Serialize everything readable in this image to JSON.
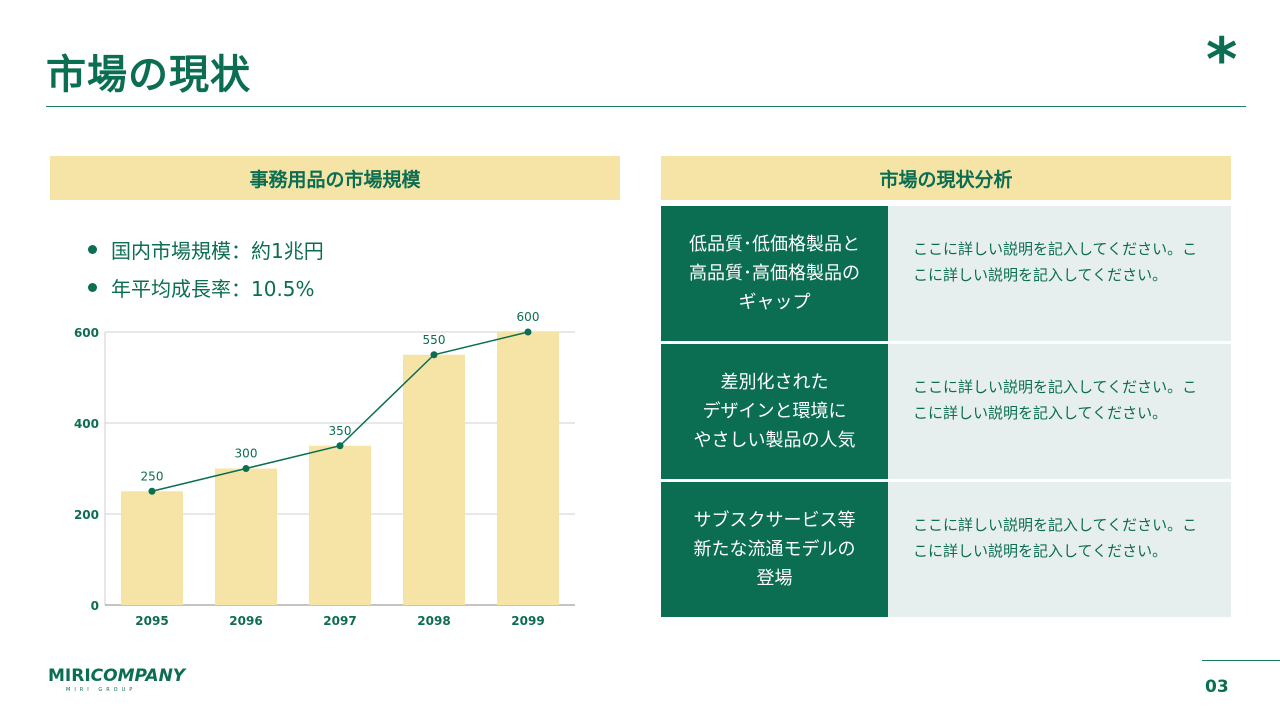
{
  "header": {
    "title": "市場の現状",
    "decoration_icon": "asterisk-icon"
  },
  "left_panel": {
    "title": "事務用品の市場規模",
    "bullets": [
      "国内市場規模：約1兆円",
      "年平均成長率：10.5%"
    ]
  },
  "chart_data": {
    "type": "bar",
    "title": "",
    "xlabel": "",
    "ylabel": "",
    "categories": [
      "2095",
      "2096",
      "2097",
      "2098",
      "2099"
    ],
    "series": [
      {
        "name": "bar",
        "type": "bar",
        "values": [
          250,
          300,
          350,
          550,
          600
        ],
        "color": "#f5e4a6"
      },
      {
        "name": "line",
        "type": "line",
        "values": [
          250,
          300,
          350,
          550,
          600
        ],
        "color": "#0b6e52"
      }
    ],
    "data_labels": [
      "250",
      "300",
      "350",
      "550",
      "600"
    ],
    "yticks": [
      0,
      200,
      400,
      600
    ],
    "ytick_labels": [
      "0",
      "200",
      "400",
      "600"
    ],
    "ylim": [
      0,
      600
    ],
    "grid": true,
    "legend": "none"
  },
  "right_panel": {
    "title": "市場の現状分析",
    "rows": [
      {
        "label": "低品質･低価格製品と\n高品質･高価格製品の\nギャップ",
        "description": "ここに詳しい説明を記入してください。ここに詳しい説明を記入してください。"
      },
      {
        "label": "差別化された\nデザインと環境に\nやさしい製品の人気",
        "description": "ここに詳しい説明を記入してください。ここに詳しい説明を記入してください。"
      },
      {
        "label": "サブスクサービス等\n新たな流通モデルの\n登場",
        "description": "ここに詳しい説明を記入してください。ここに詳しい説明を記入してください。"
      }
    ]
  },
  "footer": {
    "logo_main_prefix": "MIRI",
    "logo_main_suffix": "COMPANY",
    "logo_sub": "MIRI GROUP",
    "page_number": "03"
  },
  "colors": {
    "primary": "#0b6e52",
    "accent": "#f5e4a6",
    "row_bg": "#e7eeee"
  }
}
